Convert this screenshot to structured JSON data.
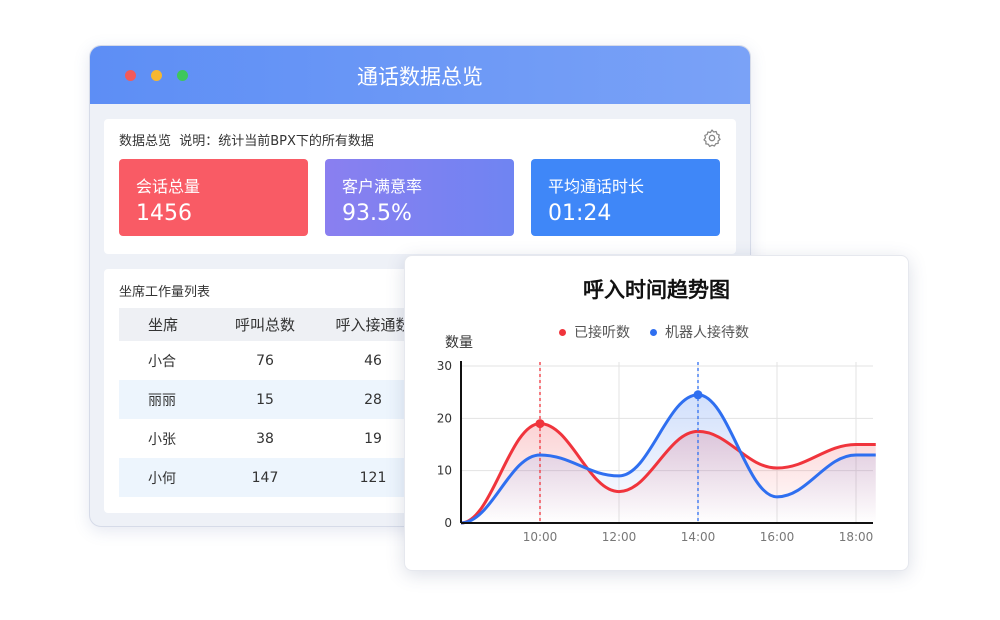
{
  "window": {
    "title": "通话数据总览",
    "dots": [
      "#f25a5a",
      "#f5b731",
      "#3ec75b"
    ]
  },
  "overview": {
    "header": "数据总览  说明：统计当前BPX下的所有数据",
    "cards": [
      {
        "label": "会话总量",
        "value": "1456",
        "color": "#f95b65"
      },
      {
        "label": "客户满意率",
        "value": "93.5%",
        "color": "#7b7ff1"
      },
      {
        "label": "平均通话时长",
        "value": "01:24",
        "color": "#3f87f8"
      }
    ]
  },
  "table": {
    "title": "坐席工作量列表",
    "columns": [
      "坐席",
      "呼叫总数",
      "呼入接通数"
    ],
    "rows": [
      [
        "小合",
        "76",
        "46"
      ],
      [
        "丽丽",
        "15",
        "28"
      ],
      [
        "小张",
        "38",
        "19"
      ],
      [
        "小何",
        "147",
        "121"
      ]
    ]
  },
  "chart_data": {
    "type": "line",
    "title": "呼入时间趋势图",
    "ylabel": "数量",
    "ylim": [
      0,
      30
    ],
    "yticks": [
      0,
      10,
      20,
      30
    ],
    "xticks": [
      "10:00",
      "12:00",
      "14:00",
      "16:00",
      "18:00"
    ],
    "x": [
      "08:00",
      "10:00",
      "12:00",
      "14:00",
      "16:00",
      "18:00",
      "18:30"
    ],
    "series": [
      {
        "name": "已接听数",
        "color": "#f0343c",
        "values": [
          0,
          19,
          6,
          17.5,
          10.5,
          15,
          15
        ],
        "highlight": "10:00"
      },
      {
        "name": "机器人接待数",
        "color": "#2f6ff0",
        "values": [
          0,
          13,
          9,
          24.5,
          5,
          13,
          13
        ],
        "highlight": "14:00"
      }
    ],
    "grid": true,
    "legend": "top"
  }
}
